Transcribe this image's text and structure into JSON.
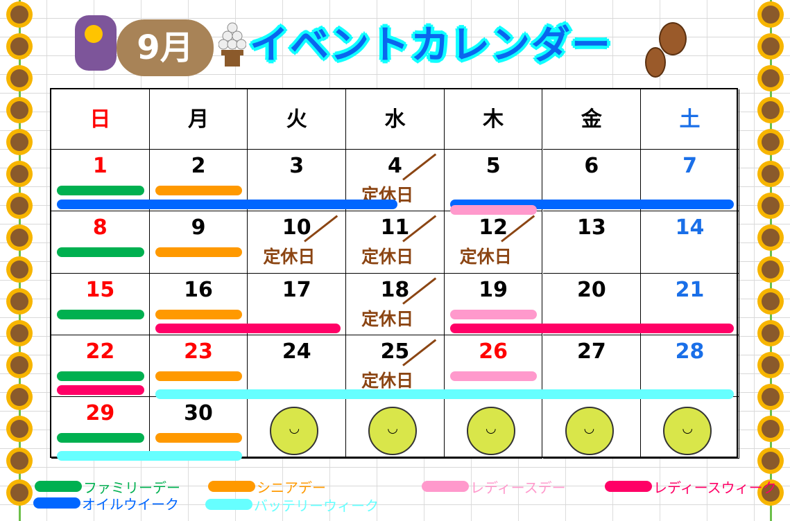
{
  "header": {
    "month": "9月",
    "title": "イベントカレンダー"
  },
  "weekdays": [
    {
      "label": "日",
      "color": "#ff0000"
    },
    {
      "label": "月",
      "color": "#000000"
    },
    {
      "label": "火",
      "color": "#000000"
    },
    {
      "label": "水",
      "color": "#000000"
    },
    {
      "label": "木",
      "color": "#000000"
    },
    {
      "label": "金",
      "color": "#000000"
    },
    {
      "label": "土",
      "color": "#1a6fe8"
    }
  ],
  "first_weekday": 0,
  "days_in_month": 30,
  "holidays": [
    23,
    26
  ],
  "closed_label": "定休日",
  "closed_days": [
    4,
    10,
    11,
    12,
    18,
    25
  ],
  "pear_days": [
    31,
    32,
    33,
    34,
    35
  ],
  "event_types": {
    "family_day": {
      "label": "ファミリーデー",
      "color": "#00b050"
    },
    "senior_day": {
      "label": "シニアデー",
      "color": "#ff9900"
    },
    "ladies_day": {
      "label": "レディースデー",
      "color": "#ff99cc"
    },
    "ladies_week": {
      "label": "レディースウィーク",
      "color": "#ff0066"
    },
    "oil_week": {
      "label": "オイルウイーク",
      "color": "#0066ff"
    },
    "battery_week": {
      "label": "バッテリーウィーク",
      "color": "#66ffff"
    }
  },
  "events": [
    {
      "type": "family_day",
      "start": 1,
      "end": 1
    },
    {
      "type": "family_day",
      "start": 8,
      "end": 8
    },
    {
      "type": "family_day",
      "start": 15,
      "end": 15
    },
    {
      "type": "family_day",
      "start": 22,
      "end": 22
    },
    {
      "type": "family_day",
      "start": 29,
      "end": 29
    },
    {
      "type": "senior_day",
      "start": 2,
      "end": 2
    },
    {
      "type": "senior_day",
      "start": 9,
      "end": 9
    },
    {
      "type": "senior_day",
      "start": 16,
      "end": 16
    },
    {
      "type": "senior_day",
      "start": 23,
      "end": 23
    },
    {
      "type": "senior_day",
      "start": 30,
      "end": 30
    },
    {
      "type": "oil_week",
      "start": 1,
      "end": 4
    },
    {
      "type": "oil_week",
      "start": 5,
      "end": 7
    },
    {
      "type": "ladies_day",
      "start": 5,
      "end": 5
    },
    {
      "type": "ladies_day",
      "start": 19,
      "end": 19
    },
    {
      "type": "ladies_day",
      "start": 26,
      "end": 26
    },
    {
      "type": "ladies_week",
      "start": 16,
      "end": 17
    },
    {
      "type": "ladies_week",
      "start": 19,
      "end": 22
    },
    {
      "type": "battery_week",
      "start": 23,
      "end": 30
    }
  ],
  "legend": [
    "family_day",
    "senior_day",
    "ladies_day",
    "ladies_week",
    "oil_week",
    "battery_week"
  ]
}
